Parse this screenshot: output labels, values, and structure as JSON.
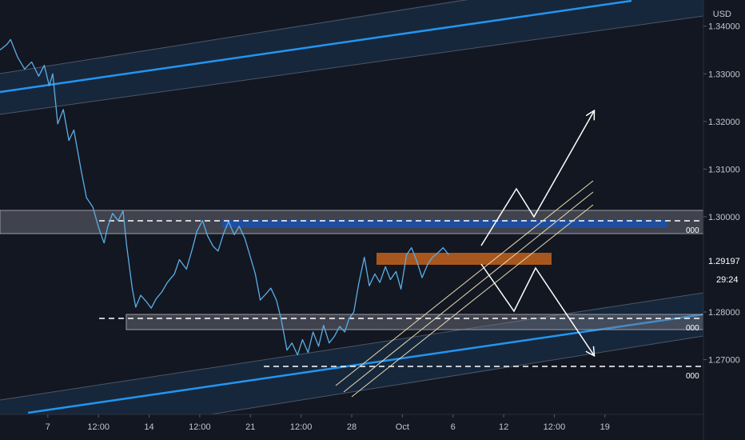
{
  "currency_label": "USD",
  "colors": {
    "background": "#131722",
    "price_line": "#5aaee6",
    "channel_line": "#2196f3",
    "channel_fill": "#1c3550",
    "zone_gray": "#787b86",
    "zone_blue": "#1e4fa3",
    "zone_orange": "#b85e1e",
    "trendline_cream": "#e8dcb0",
    "axis_text": "#c3c6ce"
  },
  "last_price_tag": "1.29197",
  "countdown_tag": "29:24",
  "level_markers": [
    "000",
    "000",
    "000"
  ],
  "chart_data": {
    "type": "line",
    "title": "",
    "xlabel": "",
    "ylabel": "",
    "ylim": [
      1.2585,
      1.3455
    ],
    "y_ticks": [
      1.34,
      1.33,
      1.32,
      1.31,
      1.3,
      1.28,
      1.27
    ],
    "y_tick_labels": [
      "1.34000",
      "1.33000",
      "1.32000",
      "1.31000",
      "1.30000",
      "1.28000",
      "1.27000"
    ],
    "x_range": [
      0,
      100
    ],
    "x_ticks": [
      {
        "x": 6.8,
        "label": "7"
      },
      {
        "x": 14.0,
        "label": "12:00"
      },
      {
        "x": 21.2,
        "label": "14"
      },
      {
        "x": 28.4,
        "label": "12:00"
      },
      {
        "x": 35.6,
        "label": "21"
      },
      {
        "x": 42.8,
        "label": "12:00"
      },
      {
        "x": 50.0,
        "label": "28"
      },
      {
        "x": 57.2,
        "label": "Oct"
      },
      {
        "x": 64.4,
        "label": "6"
      },
      {
        "x": 71.6,
        "label": "12"
      },
      {
        "x": 78.8,
        "label": "12:00"
      },
      {
        "x": 86.0,
        "label": "19"
      }
    ],
    "series": [
      {
        "values": [
          [
            0,
            1.335
          ],
          [
            1,
            1.3362
          ],
          [
            1.5,
            1.3372
          ],
          [
            2.5,
            1.3335
          ],
          [
            3.5,
            1.331
          ],
          [
            4.5,
            1.3325
          ],
          [
            5.5,
            1.3295
          ],
          [
            6.3,
            1.3318
          ],
          [
            7.0,
            1.3275
          ],
          [
            7.5,
            1.33
          ],
          [
            8.2,
            1.3195
          ],
          [
            9.0,
            1.3225
          ],
          [
            9.8,
            1.316
          ],
          [
            10.5,
            1.3182
          ],
          [
            11.5,
            1.31
          ],
          [
            12.3,
            1.304
          ],
          [
            13.2,
            1.302
          ],
          [
            14.0,
            1.2978
          ],
          [
            14.8,
            1.2945
          ],
          [
            15.3,
            1.2978
          ],
          [
            16.0,
            1.3007
          ],
          [
            16.8,
            1.2992
          ],
          [
            17.5,
            1.3012
          ],
          [
            18.0,
            1.294
          ],
          [
            18.8,
            1.285
          ],
          [
            19.3,
            1.281
          ],
          [
            20.0,
            1.2835
          ],
          [
            20.8,
            1.2822
          ],
          [
            21.5,
            1.2808
          ],
          [
            22.2,
            1.2828
          ],
          [
            23.0,
            1.2842
          ],
          [
            23.8,
            1.2862
          ],
          [
            24.8,
            1.288
          ],
          [
            25.5,
            1.291
          ],
          [
            26.5,
            1.289
          ],
          [
            27.3,
            1.293
          ],
          [
            28.0,
            1.297
          ],
          [
            28.8,
            1.2992
          ],
          [
            29.5,
            1.296
          ],
          [
            30.3,
            1.2938
          ],
          [
            31.0,
            1.2928
          ],
          [
            31.8,
            1.2965
          ],
          [
            32.5,
            1.299
          ],
          [
            33.3,
            1.2962
          ],
          [
            34.0,
            1.298
          ],
          [
            34.8,
            1.2955
          ],
          [
            35.5,
            1.292
          ],
          [
            36.3,
            1.288
          ],
          [
            37.0,
            1.2825
          ],
          [
            37.8,
            1.2838
          ],
          [
            38.5,
            1.285
          ],
          [
            39.3,
            1.2825
          ],
          [
            40.0,
            1.2783
          ],
          [
            40.8,
            1.272
          ],
          [
            41.5,
            1.2735
          ],
          [
            42.3,
            1.271
          ],
          [
            43.0,
            1.2742
          ],
          [
            43.8,
            1.2715
          ],
          [
            44.5,
            1.2758
          ],
          [
            45.3,
            1.2728
          ],
          [
            46.0,
            1.2772
          ],
          [
            46.8,
            1.2735
          ],
          [
            47.5,
            1.2748
          ],
          [
            48.3,
            1.277
          ],
          [
            49.0,
            1.2758
          ],
          [
            49.6,
            1.2785
          ],
          [
            50.3,
            1.28
          ],
          [
            51.0,
            1.286
          ],
          [
            51.8,
            1.2915
          ],
          [
            52.5,
            1.2855
          ],
          [
            53.3,
            1.288
          ],
          [
            54.0,
            1.2862
          ],
          [
            54.8,
            1.2895
          ],
          [
            55.5,
            1.2868
          ],
          [
            56.3,
            1.2885
          ],
          [
            57.0,
            1.2848
          ],
          [
            57.8,
            1.292
          ],
          [
            58.5,
            1.2935
          ],
          [
            59.3,
            1.2905
          ],
          [
            60.0,
            1.2872
          ],
          [
            60.8,
            1.29
          ],
          [
            61.5,
            1.2915
          ],
          [
            62.3,
            1.2925
          ],
          [
            63.0,
            1.2935
          ],
          [
            63.8,
            1.292
          ]
        ]
      }
    ]
  }
}
